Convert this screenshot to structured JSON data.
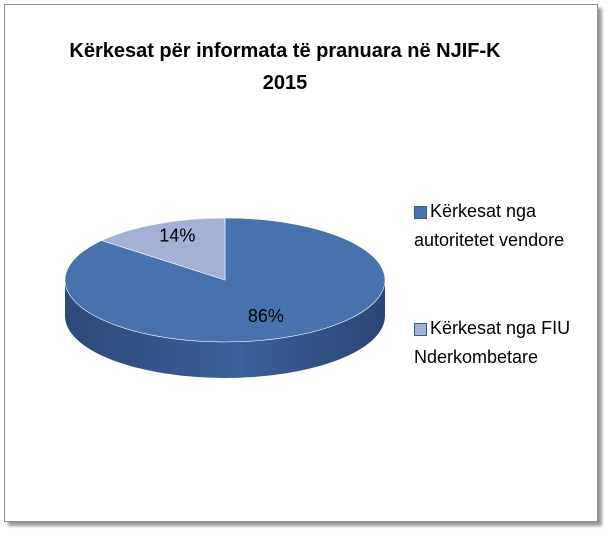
{
  "chart_data": {
    "type": "pie",
    "title": "Kërkesat për informata të pranuara në NJIF-K 2015",
    "categories": [
      "Kërkesat nga autoritetet vendore",
      "Kërkesat nga FIU Nderkombetare"
    ],
    "values": [
      86,
      14
    ],
    "value_labels": [
      "86%",
      "14%"
    ],
    "colors": [
      "#4672ad",
      "#a3b1d6"
    ],
    "legend": "right"
  }
}
